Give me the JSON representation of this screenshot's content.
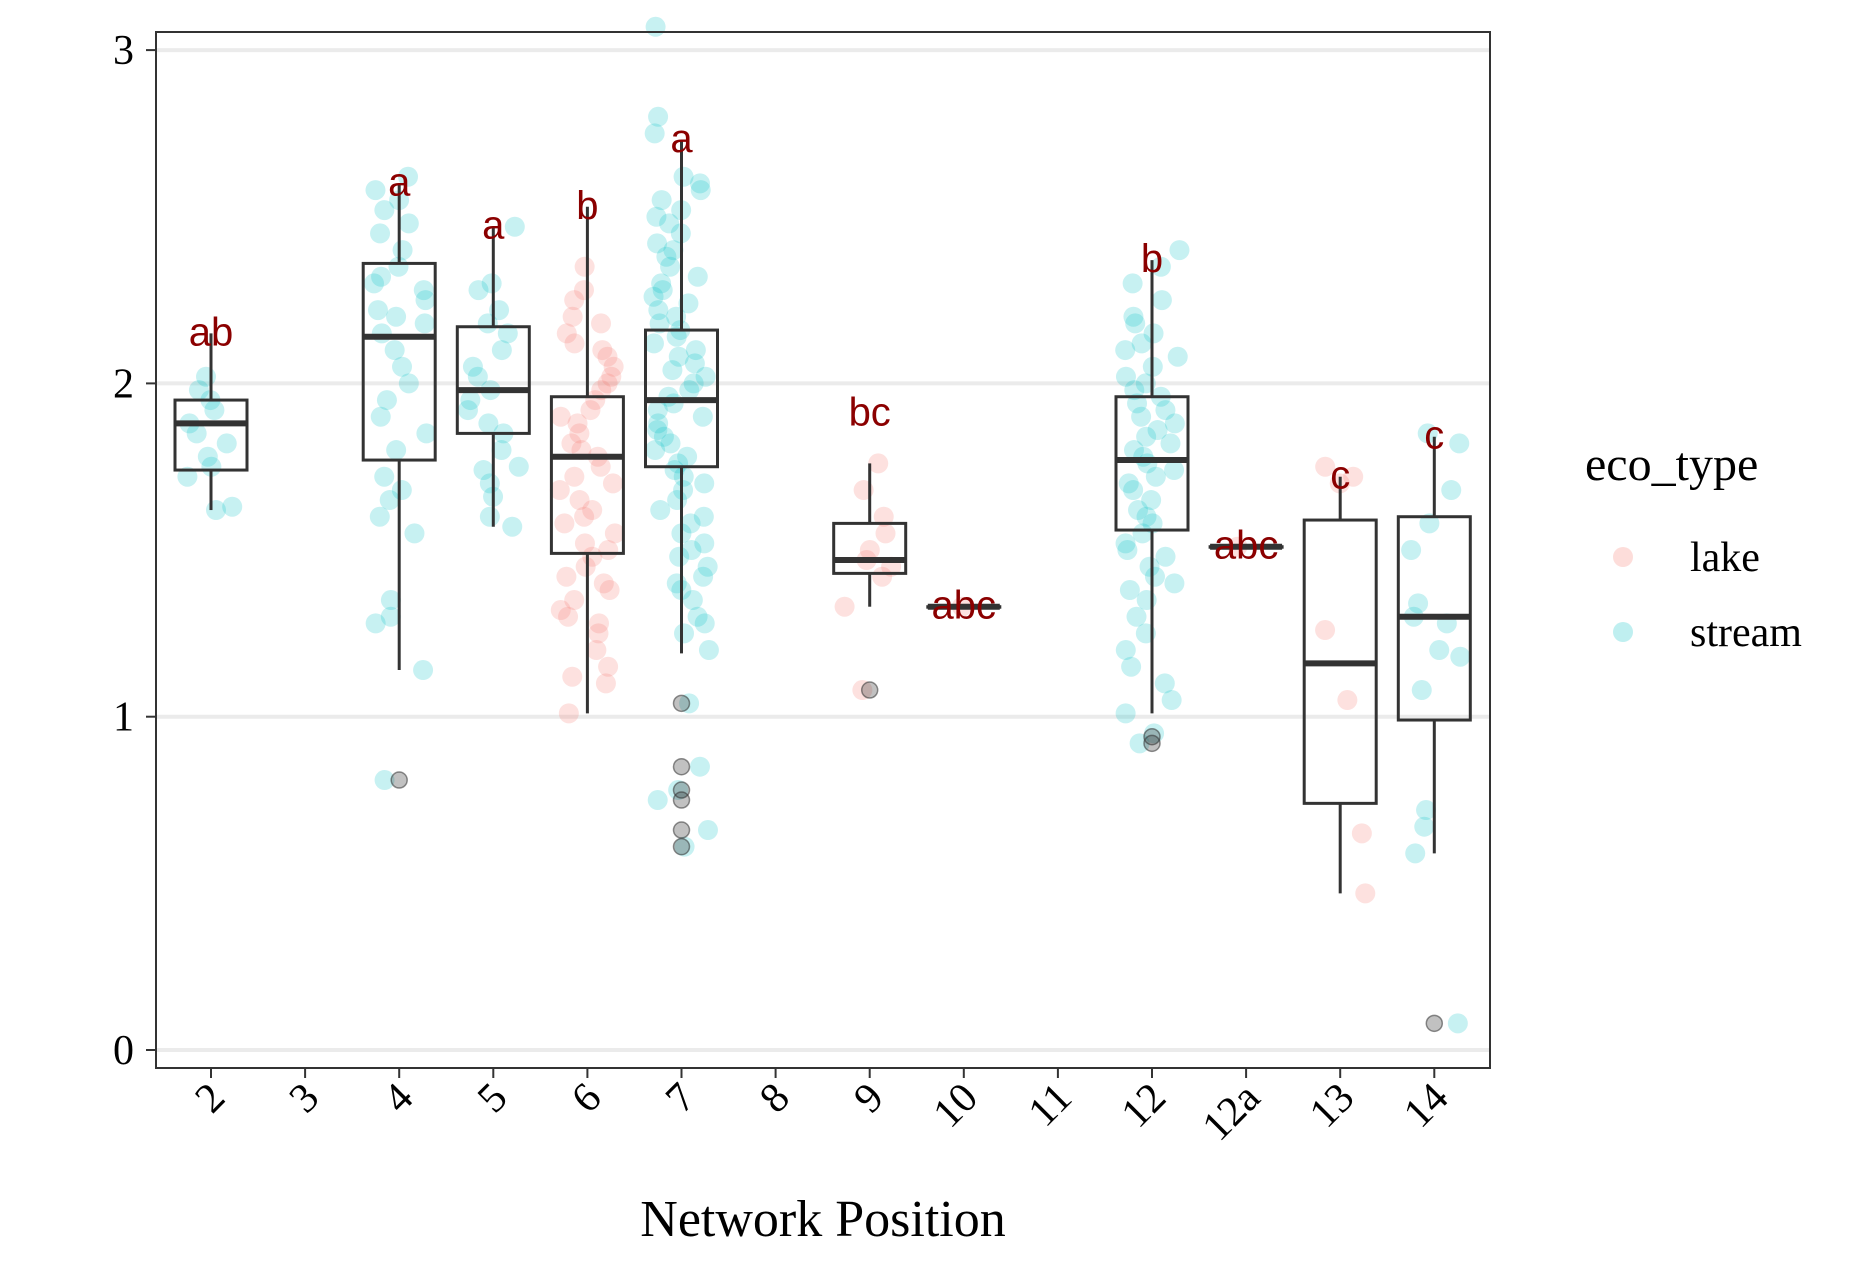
{
  "chart_data": {
    "type": "box",
    "xlabel": "Network Position",
    "ylabel": "",
    "ylim": [
      0,
      3
    ],
    "yticks": [
      "0",
      "1",
      "2",
      "3"
    ],
    "categories": [
      "2",
      "3",
      "4",
      "5",
      "6",
      "7",
      "8",
      "9",
      "10",
      "11",
      "12",
      "12a",
      "13",
      "14"
    ],
    "grid": "horizontal major",
    "legend": {
      "title": "eco_type",
      "position": "right",
      "entries": [
        {
          "name": "lake",
          "color": "#F8766D"
        },
        {
          "name": "stream",
          "color": "#00BFC4"
        }
      ]
    },
    "boxes": [
      {
        "category": "2",
        "whisker_low": 1.62,
        "q1": 1.74,
        "median": 1.88,
        "q3": 1.95,
        "whisker_high": 2.15,
        "letter": "ab",
        "letter_y": 2.15
      },
      {
        "category": "4",
        "whisker_low": 1.14,
        "q1": 1.77,
        "median": 2.14,
        "q3": 2.36,
        "whisker_high": 2.6,
        "letter": "a",
        "letter_y": 2.6
      },
      {
        "category": "5",
        "whisker_low": 1.57,
        "q1": 1.85,
        "median": 1.98,
        "q3": 2.17,
        "whisker_high": 2.47,
        "letter": "a",
        "letter_y": 2.47
      },
      {
        "category": "6",
        "whisker_low": 1.01,
        "q1": 1.49,
        "median": 1.78,
        "q3": 1.96,
        "whisker_high": 2.53,
        "letter": "b",
        "letter_y": 2.53
      },
      {
        "category": "7",
        "whisker_low": 1.19,
        "q1": 1.75,
        "median": 1.95,
        "q3": 2.16,
        "whisker_high": 2.73,
        "letter": "a",
        "letter_y": 2.73
      },
      {
        "category": "9",
        "whisker_low": 1.33,
        "q1": 1.43,
        "median": 1.47,
        "q3": 1.58,
        "whisker_high": 1.76,
        "letter": "bc",
        "letter_y": 1.91
      },
      {
        "category": "10",
        "whisker_low": 1.33,
        "q1": 1.33,
        "median": 1.33,
        "q3": 1.33,
        "whisker_high": 1.33,
        "letter": "abc",
        "letter_y": 1.33
      },
      {
        "category": "12",
        "whisker_low": 1.01,
        "q1": 1.56,
        "median": 1.77,
        "q3": 1.96,
        "whisker_high": 2.37,
        "letter": "b",
        "letter_y": 2.37
      },
      {
        "category": "12a",
        "whisker_low": 1.51,
        "q1": 1.51,
        "median": 1.51,
        "q3": 1.51,
        "whisker_high": 1.51,
        "letter": "abc",
        "letter_y": 1.51
      },
      {
        "category": "13",
        "whisker_low": 0.47,
        "q1": 0.74,
        "median": 1.16,
        "q3": 1.59,
        "whisker_high": 1.72,
        "letter": "c",
        "letter_y": 1.72
      },
      {
        "category": "14",
        "whisker_low": 0.59,
        "q1": 0.99,
        "median": 1.3,
        "q3": 1.6,
        "whisker_high": 1.84,
        "letter": "c",
        "letter_y": 1.84
      }
    ],
    "outliers": [
      {
        "category": "4",
        "y": 0.81
      },
      {
        "category": "7",
        "y": 1.04
      },
      {
        "category": "7",
        "y": 0.85
      },
      {
        "category": "7",
        "y": 0.78
      },
      {
        "category": "7",
        "y": 0.75
      },
      {
        "category": "7",
        "y": 0.66
      },
      {
        "category": "7",
        "y": 0.61
      },
      {
        "category": "9",
        "y": 1.08
      },
      {
        "category": "12",
        "y": 0.94
      },
      {
        "category": "12",
        "y": 0.92
      },
      {
        "category": "14",
        "y": 0.08
      }
    ],
    "points": [
      {
        "category": "2",
        "eco": "stream",
        "y": [
          1.95,
          1.92,
          1.88,
          1.85,
          1.78,
          1.75,
          1.72,
          1.63,
          1.62,
          2.02,
          1.98,
          1.82
        ]
      },
      {
        "category": "4",
        "eco": "stream",
        "y": [
          2.62,
          2.58,
          2.55,
          2.52,
          2.48,
          2.45,
          2.4,
          2.35,
          2.32,
          2.3,
          2.28,
          2.25,
          2.22,
          2.2,
          2.18,
          2.15,
          2.1,
          2.05,
          2.0,
          1.95,
          1.9,
          1.85,
          1.8,
          1.72,
          1.68,
          1.65,
          1.6,
          1.55,
          1.35,
          1.3,
          1.28,
          1.14,
          0.81
        ]
      },
      {
        "category": "5",
        "eco": "stream",
        "y": [
          2.47,
          2.3,
          2.28,
          2.22,
          2.18,
          2.15,
          2.1,
          2.05,
          2.02,
          1.98,
          1.95,
          1.92,
          1.88,
          1.85,
          1.8,
          1.75,
          1.74,
          1.7,
          1.66,
          1.6,
          1.57
        ]
      },
      {
        "category": "6",
        "eco": "lake",
        "y": [
          2.35,
          2.28,
          2.25,
          2.2,
          2.18,
          2.15,
          2.12,
          2.1,
          2.08,
          2.05,
          2.02,
          2.0,
          1.98,
          1.95,
          1.92,
          1.9,
          1.88,
          1.85,
          1.82,
          1.8,
          1.78,
          1.75,
          1.72,
          1.7,
          1.68,
          1.65,
          1.62,
          1.6,
          1.58,
          1.55,
          1.52,
          1.5,
          1.48,
          1.45,
          1.42,
          1.4,
          1.38,
          1.35,
          1.32,
          1.3,
          1.28,
          1.25,
          1.2,
          1.15,
          1.12,
          1.1,
          1.01
        ]
      },
      {
        "category": "7",
        "eco": "stream",
        "y": [
          3.07,
          2.8,
          2.75,
          2.62,
          2.6,
          2.58,
          2.55,
          2.52,
          2.5,
          2.48,
          2.45,
          2.42,
          2.4,
          2.38,
          2.35,
          2.32,
          2.3,
          2.28,
          2.26,
          2.24,
          2.22,
          2.2,
          2.18,
          2.16,
          2.14,
          2.12,
          2.1,
          2.08,
          2.06,
          2.04,
          2.02,
          2.0,
          1.98,
          1.96,
          1.94,
          1.92,
          1.9,
          1.88,
          1.86,
          1.84,
          1.82,
          1.8,
          1.78,
          1.76,
          1.74,
          1.72,
          1.7,
          1.68,
          1.65,
          1.62,
          1.6,
          1.58,
          1.55,
          1.52,
          1.5,
          1.48,
          1.45,
          1.42,
          1.4,
          1.38,
          1.35,
          1.3,
          1.28,
          1.25,
          1.2,
          1.04,
          0.85,
          0.78,
          0.75,
          0.66,
          0.61
        ]
      },
      {
        "category": "9",
        "eco": "lake",
        "y": [
          1.76,
          1.68,
          1.6,
          1.55,
          1.5,
          1.47,
          1.45,
          1.42,
          1.33,
          1.08
        ]
      },
      {
        "category": "10",
        "eco": "lake",
        "y": [
          1.33
        ]
      },
      {
        "category": "12",
        "eco": "stream",
        "y": [
          2.4,
          2.35,
          2.3,
          2.25,
          2.2,
          2.18,
          2.15,
          2.12,
          2.1,
          2.08,
          2.05,
          2.02,
          2.0,
          1.98,
          1.96,
          1.94,
          1.92,
          1.9,
          1.88,
          1.86,
          1.84,
          1.82,
          1.8,
          1.78,
          1.76,
          1.74,
          1.72,
          1.7,
          1.68,
          1.65,
          1.62,
          1.6,
          1.58,
          1.55,
          1.52,
          1.5,
          1.48,
          1.45,
          1.42,
          1.4,
          1.38,
          1.35,
          1.3,
          1.25,
          1.2,
          1.15,
          1.1,
          1.05,
          1.01,
          0.95,
          0.92
        ]
      },
      {
        "category": "12a",
        "eco": "lake",
        "y": [
          1.51
        ]
      },
      {
        "category": "13",
        "eco": "lake",
        "y": [
          1.75,
          1.72,
          1.7,
          1.26,
          1.05,
          0.65,
          0.47
        ]
      },
      {
        "category": "14",
        "eco": "stream",
        "y": [
          1.85,
          1.82,
          1.68,
          1.58,
          1.5,
          1.34,
          1.3,
          1.28,
          1.2,
          1.18,
          1.08,
          0.72,
          0.67,
          0.59,
          0.08
        ]
      }
    ]
  }
}
